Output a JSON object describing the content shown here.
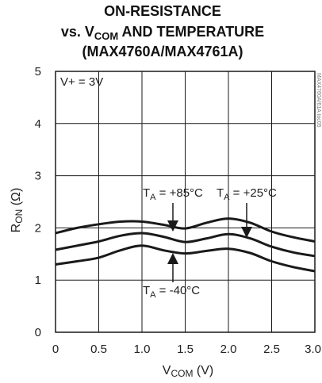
{
  "chart_data": {
    "type": "line",
    "title_lines": [
      "ON-RESISTANCE",
      "vs. V",
      "COM",
      " AND TEMPERATURE",
      "(MAX4760A/MAX4761A)"
    ],
    "xlabel_main": "V",
    "xlabel_sub": "COM",
    "xlabel_unit": " (V)",
    "ylabel_main": "R",
    "ylabel_sub": "ON",
    "ylabel_unit": " (Ω)",
    "xlim": [
      0,
      3.0
    ],
    "ylim": [
      0,
      5
    ],
    "x_ticks": [
      "0",
      "0.5",
      "1.0",
      "1.5",
      "2.0",
      "2.5",
      "3.0"
    ],
    "y_ticks": [
      "0",
      "1",
      "2",
      "3",
      "4",
      "5"
    ],
    "grid": true,
    "condition_label": "V+ = 3V",
    "watermark": "MAX4760A/61A toc05",
    "series": [
      {
        "name": "TA = +85°C",
        "x": [
          0,
          0.25,
          0.5,
          0.75,
          1.0,
          1.25,
          1.5,
          1.75,
          2.0,
          2.25,
          2.5,
          2.75,
          3.0
        ],
        "y": [
          1.9,
          2.0,
          2.07,
          2.12,
          2.12,
          2.06,
          1.99,
          2.1,
          2.18,
          2.1,
          1.93,
          1.82,
          1.74
        ]
      },
      {
        "name": "TA = +25°C",
        "x": [
          0,
          0.25,
          0.5,
          0.75,
          1.0,
          1.25,
          1.5,
          1.75,
          2.0,
          2.25,
          2.5,
          2.75,
          3.0
        ],
        "y": [
          1.58,
          1.66,
          1.74,
          1.85,
          1.9,
          1.83,
          1.73,
          1.8,
          1.88,
          1.8,
          1.64,
          1.53,
          1.46
        ]
      },
      {
        "name": "TA = -40°C",
        "x": [
          0,
          0.25,
          0.5,
          0.75,
          1.0,
          1.25,
          1.5,
          1.75,
          2.0,
          2.25,
          2.5,
          2.75,
          3.0
        ],
        "y": [
          1.3,
          1.36,
          1.43,
          1.57,
          1.66,
          1.57,
          1.51,
          1.56,
          1.6,
          1.52,
          1.36,
          1.25,
          1.17
        ]
      }
    ],
    "annotations": [
      {
        "main": "T",
        "sub": "A",
        "rest": " = +85°C",
        "series": 0
      },
      {
        "main": "T",
        "sub": "A",
        "rest": " = +25°C",
        "series": 1
      },
      {
        "main": "T",
        "sub": "A",
        "rest": " = -40°C",
        "series": 2
      }
    ],
    "colors": {
      "line": "#1a1a1a",
      "grid": "#1a1a1a",
      "frame": "#1a1a1a"
    }
  }
}
